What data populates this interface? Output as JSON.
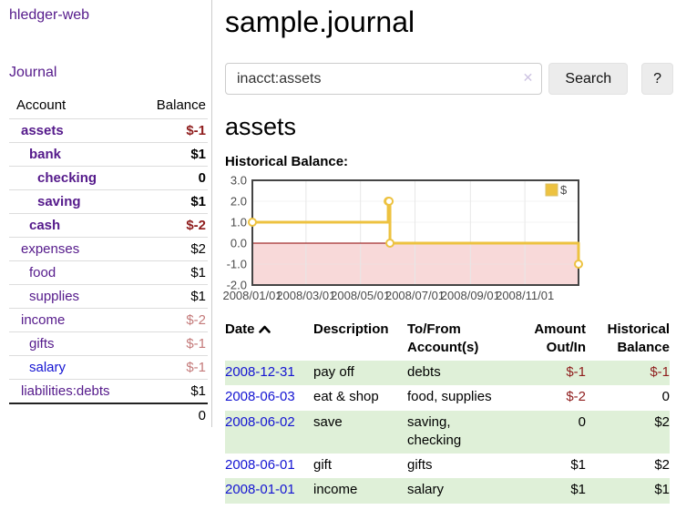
{
  "app": {
    "brand": "hledger-web",
    "nav": {
      "journal": "Journal"
    }
  },
  "sidebar": {
    "header": {
      "account": "Account",
      "balance": "Balance"
    },
    "accounts": [
      {
        "name": "assets",
        "depth": 0,
        "bold": true,
        "balance": "$-1",
        "neg": "strong"
      },
      {
        "name": "bank",
        "depth": 1,
        "bold": true,
        "balance": "$1"
      },
      {
        "name": "checking",
        "depth": 2,
        "bold": true,
        "balance": "0"
      },
      {
        "name": "saving",
        "depth": 2,
        "bold": true,
        "balance": "$1"
      },
      {
        "name": "cash",
        "depth": 1,
        "bold": true,
        "balance": "$-2",
        "neg": "strong"
      },
      {
        "name": "expenses",
        "depth": 0,
        "bold": false,
        "balance": "$2"
      },
      {
        "name": "food",
        "depth": 1,
        "bold": false,
        "balance": "$1"
      },
      {
        "name": "supplies",
        "depth": 1,
        "bold": false,
        "balance": "$1"
      },
      {
        "name": "income",
        "depth": 0,
        "bold": false,
        "balance": "$-2",
        "neg": "faded"
      },
      {
        "name": "gifts",
        "depth": 1,
        "bold": false,
        "balance": "$-1",
        "neg": "faded"
      },
      {
        "name": "salary",
        "depth": 1,
        "bold": false,
        "balance": "$-1",
        "neg": "faded",
        "link": "blue"
      },
      {
        "name": "liabilities:debts",
        "depth": 0,
        "bold": false,
        "balance": "$1"
      }
    ],
    "total": "0"
  },
  "main": {
    "title": "sample.journal",
    "search": {
      "value": "inacct:assets",
      "clear_icon": "✕",
      "button_label": "Search",
      "help_label": "?"
    },
    "account_heading": "assets",
    "chart_label": "Historical Balance:"
  },
  "chart_data": {
    "type": "line",
    "step": true,
    "title": "Historical Balance:",
    "series": [
      {
        "name": "$",
        "color": "#edc240",
        "points": [
          {
            "date": "2008-01-01",
            "day": 0,
            "value": 1
          },
          {
            "date": "2008-06-01",
            "day": 152,
            "value": 2
          },
          {
            "date": "2008-06-02",
            "day": 153,
            "value": 2
          },
          {
            "date": "2008-06-03",
            "day": 154,
            "value": 0
          },
          {
            "date": "2008-12-31",
            "day": 365,
            "value": -1
          }
        ]
      }
    ],
    "x_tick_labels": [
      "2008/01/01",
      "2008/03/01",
      "2008/05/01",
      "2008/07/01",
      "2008/09/01",
      "2008/11/01"
    ],
    "x_tick_days": [
      0,
      60,
      121,
      182,
      244,
      305
    ],
    "x_range_days": [
      0,
      365
    ],
    "y_ticks": [
      -2,
      -1,
      0,
      1,
      2,
      3
    ],
    "ylim": [
      -2,
      3
    ],
    "grid": true,
    "legend": {
      "label": "$",
      "position": "top-right"
    },
    "colors": {
      "negative_region": "#f8d9d9",
      "zero_line": "#8b0000",
      "grid": "#e7e7e7",
      "border": "#444444"
    }
  },
  "register": {
    "headers": {
      "date": "Date",
      "description": "Description",
      "accounts": "To/From Account(s)",
      "amount": "Amount Out/In",
      "balance": "Historical Balance"
    },
    "rows": [
      {
        "date": "2008-12-31",
        "description": "pay off",
        "accounts": "debts",
        "amount": "$-1",
        "balance": "$-1",
        "amount_negative": true,
        "balance_negative": true
      },
      {
        "date": "2008-06-03",
        "description": "eat & shop",
        "accounts": "food, supplies",
        "amount": "$-2",
        "balance": "0",
        "amount_negative": true,
        "balance_negative": false
      },
      {
        "date": "2008-06-02",
        "description": "save",
        "accounts": "saving, checking",
        "amount": "0",
        "balance": "$2",
        "amount_negative": false,
        "balance_negative": false
      },
      {
        "date": "2008-06-01",
        "description": "gift",
        "accounts": "gifts",
        "amount": "$1",
        "balance": "$2",
        "amount_negative": false,
        "balance_negative": false
      },
      {
        "date": "2008-01-01",
        "description": "income",
        "accounts": "salary",
        "amount": "$1",
        "balance": "$1",
        "amount_negative": false,
        "balance_negative": false
      }
    ]
  }
}
